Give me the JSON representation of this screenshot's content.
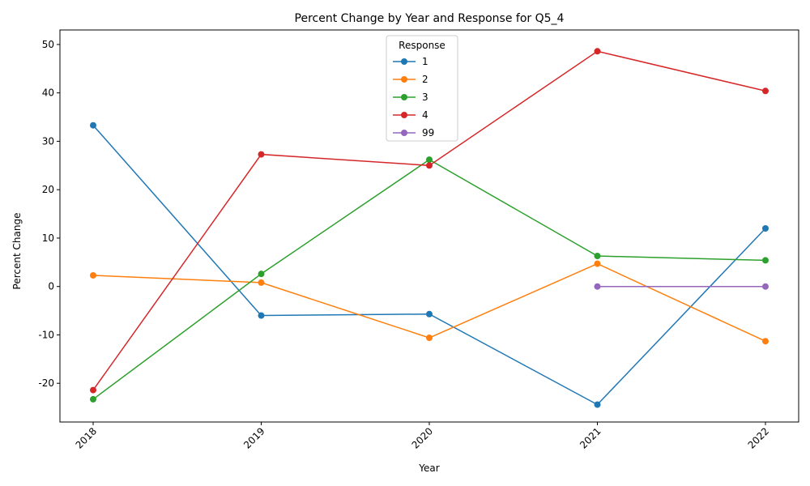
{
  "chart_data": {
    "type": "line",
    "title": "Percent Change by Year and Response for Q5_4",
    "xlabel": "Year",
    "ylabel": "Percent Change",
    "x": [
      "2018",
      "2019",
      "2020",
      "2021",
      "2022"
    ],
    "ylim": [
      -28,
      53
    ],
    "yticks": [
      -20,
      -10,
      0,
      10,
      20,
      30,
      40,
      50
    ],
    "grid": false,
    "legend": {
      "title": "Response",
      "placement": "top-center"
    },
    "series": [
      {
        "name": "1",
        "color": "#1f77b4",
        "values": [
          33.3,
          -6.0,
          -5.7,
          -24.4,
          12.0
        ]
      },
      {
        "name": "2",
        "color": "#ff7f0e",
        "values": [
          2.3,
          0.8,
          -10.6,
          4.7,
          -11.3
        ]
      },
      {
        "name": "3",
        "color": "#2ca02c",
        "values": [
          -23.3,
          2.6,
          26.2,
          6.3,
          5.4
        ]
      },
      {
        "name": "4",
        "color": "#d62728",
        "values": [
          -21.4,
          27.3,
          25.0,
          48.6,
          40.4
        ]
      },
      {
        "name": "99",
        "color": "#9467bd",
        "values": [
          null,
          null,
          null,
          0.0,
          0.0
        ]
      }
    ]
  }
}
